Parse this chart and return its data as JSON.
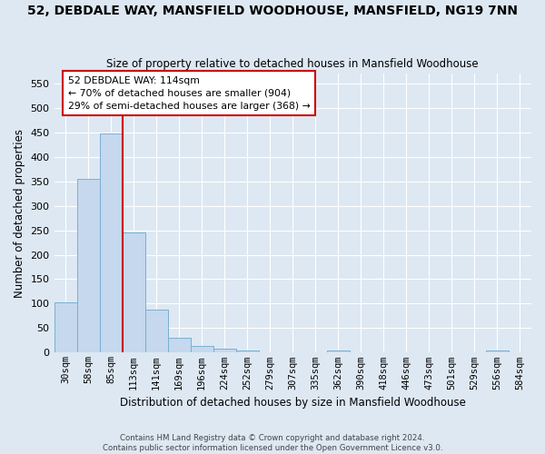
{
  "title": "52, DEBDALE WAY, MANSFIELD WOODHOUSE, MANSFIELD, NG19 7NN",
  "subtitle": "Size of property relative to detached houses in Mansfield Woodhouse",
  "xlabel": "Distribution of detached houses by size in Mansfield Woodhouse",
  "ylabel": "Number of detached properties",
  "footer_line1": "Contains HM Land Registry data © Crown copyright and database right 2024.",
  "footer_line2": "Contains public sector information licensed under the Open Government Licence v3.0.",
  "bin_labels": [
    "30sqm",
    "58sqm",
    "85sqm",
    "113sqm",
    "141sqm",
    "169sqm",
    "196sqm",
    "224sqm",
    "252sqm",
    "279sqm",
    "307sqm",
    "335sqm",
    "362sqm",
    "390sqm",
    "418sqm",
    "446sqm",
    "473sqm",
    "501sqm",
    "529sqm",
    "556sqm",
    "584sqm"
  ],
  "values": [
    103,
    354,
    448,
    246,
    87,
    30,
    13,
    9,
    5,
    0,
    0,
    0,
    5,
    0,
    0,
    0,
    0,
    0,
    0,
    5,
    0
  ],
  "bar_color": "#c5d8ed",
  "bar_edge_color": "#7aafd4",
  "background_color": "#dde8f3",
  "grid_color": "#ffffff",
  "vline_index": 2.5,
  "vline_color": "#cc0000",
  "ylim": [
    0,
    570
  ],
  "yticks": [
    0,
    50,
    100,
    150,
    200,
    250,
    300,
    350,
    400,
    450,
    500,
    550
  ],
  "annotation_text": "52 DEBDALE WAY: 114sqm\n← 70% of detached houses are smaller (904)\n29% of semi-detached houses are larger (368) →",
  "annotation_box_facecolor": "#ffffff",
  "annotation_box_edgecolor": "#cc0000"
}
